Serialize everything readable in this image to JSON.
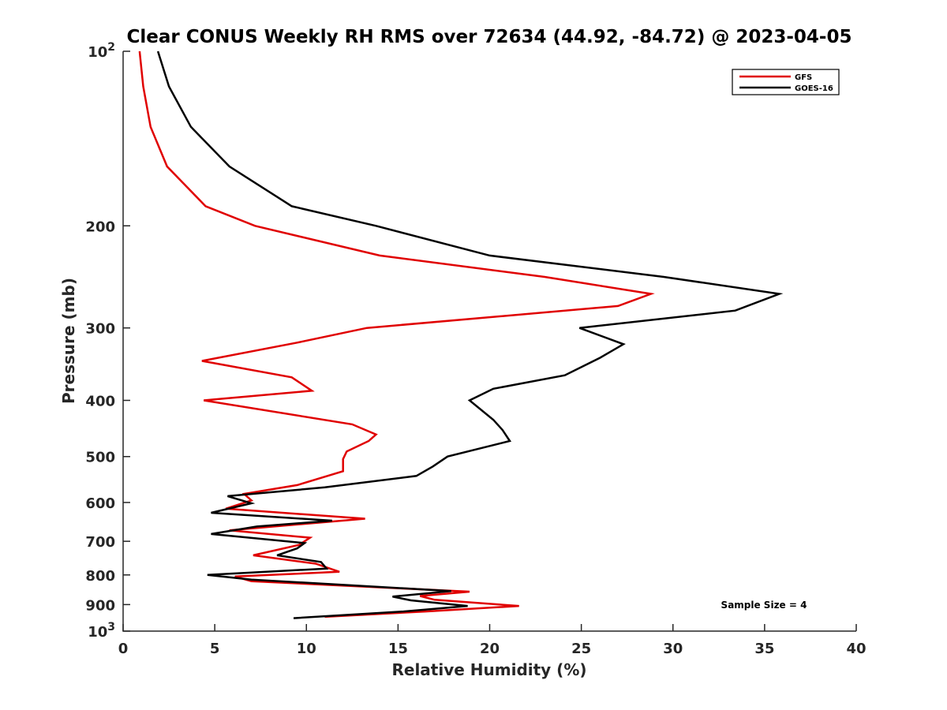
{
  "chart_data": {
    "type": "line",
    "title": "Clear CONUS Weekly RH RMS over 72634 (44.92, -84.72) @ 2023-04-05",
    "xlabel": "Relative Humidity (%)",
    "ylabel": "Pressure (mb)",
    "xlim": [
      0,
      40
    ],
    "ylim": [
      100,
      1000
    ],
    "yscale": "log",
    "y_reversed": true,
    "legend_position": "top-right",
    "x_ticks": [
      "0",
      "5",
      "10",
      "15",
      "20",
      "25",
      "30",
      "35",
      "40"
    ],
    "y_ticks": [
      {
        "value": 100,
        "base": "10",
        "exp": "2",
        "label": ""
      },
      {
        "value": 200,
        "label": "200"
      },
      {
        "value": 300,
        "label": "300"
      },
      {
        "value": 400,
        "label": "400"
      },
      {
        "value": 500,
        "label": "500"
      },
      {
        "value": 600,
        "label": "600"
      },
      {
        "value": 700,
        "label": "700"
      },
      {
        "value": 800,
        "label": "800"
      },
      {
        "value": 900,
        "label": "900"
      },
      {
        "value": 1000,
        "base": "10",
        "exp": "3",
        "label": ""
      }
    ],
    "annotation": "Sample Size = 4",
    "series": [
      {
        "name": "GFS",
        "color": "#e00000",
        "points": [
          [
            0.9,
            100
          ],
          [
            1.1,
            115
          ],
          [
            1.5,
            135
          ],
          [
            2.4,
            158
          ],
          [
            4.5,
            185
          ],
          [
            7.2,
            200
          ],
          [
            14,
            225
          ],
          [
            23,
            245
          ],
          [
            28.8,
            262
          ],
          [
            27,
            275
          ],
          [
            13.3,
            300
          ],
          [
            9.5,
            318
          ],
          [
            4.3,
            342
          ],
          [
            9.2,
            365
          ],
          [
            10.3,
            385
          ],
          [
            4.4,
            400
          ],
          [
            12.5,
            440
          ],
          [
            13.8,
            458
          ],
          [
            13.4,
            470
          ],
          [
            12.2,
            490
          ],
          [
            12,
            505
          ],
          [
            12,
            530
          ],
          [
            9.5,
            560
          ],
          [
            6.6,
            580
          ],
          [
            7,
            595
          ],
          [
            5.6,
            615
          ],
          [
            13.2,
            640
          ],
          [
            5.8,
            670
          ],
          [
            10.2,
            690
          ],
          [
            9.6,
            710
          ],
          [
            7.1,
            740
          ],
          [
            10.5,
            765
          ],
          [
            11.8,
            790
          ],
          [
            6.1,
            805
          ],
          [
            7,
            820
          ],
          [
            18.9,
            855
          ],
          [
            16.2,
            870
          ],
          [
            17,
            883
          ],
          [
            21.6,
            905
          ],
          [
            16.5,
            925
          ],
          [
            11,
            945
          ]
        ]
      },
      {
        "name": "GOES-16",
        "color": "#000000",
        "points": [
          [
            1.9,
            100
          ],
          [
            2.5,
            115
          ],
          [
            3.7,
            135
          ],
          [
            5.8,
            158
          ],
          [
            9.2,
            185
          ],
          [
            13.8,
            200
          ],
          [
            20,
            225
          ],
          [
            29.5,
            245
          ],
          [
            35.8,
            262
          ],
          [
            33.4,
            280
          ],
          [
            24.9,
            300
          ],
          [
            27.3,
            320
          ],
          [
            26,
            338
          ],
          [
            24.1,
            362
          ],
          [
            20.2,
            382
          ],
          [
            18.9,
            400
          ],
          [
            20.2,
            432
          ],
          [
            20.7,
            450
          ],
          [
            21.1,
            470
          ],
          [
            17.7,
            500
          ],
          [
            16.9,
            520
          ],
          [
            16,
            540
          ],
          [
            11,
            565
          ],
          [
            5.7,
            585
          ],
          [
            7,
            602
          ],
          [
            4.8,
            625
          ],
          [
            11.4,
            645
          ],
          [
            7.3,
            660
          ],
          [
            4.8,
            680
          ],
          [
            9.9,
            705
          ],
          [
            9.5,
            720
          ],
          [
            8.4,
            740
          ],
          [
            10.8,
            760
          ],
          [
            11.1,
            780
          ],
          [
            4.6,
            800
          ],
          [
            7,
            815
          ],
          [
            17.9,
            853
          ],
          [
            14.7,
            872
          ],
          [
            15.7,
            885
          ],
          [
            18.8,
            905
          ],
          [
            15.3,
            925
          ],
          [
            9.3,
            950
          ]
        ]
      }
    ]
  }
}
